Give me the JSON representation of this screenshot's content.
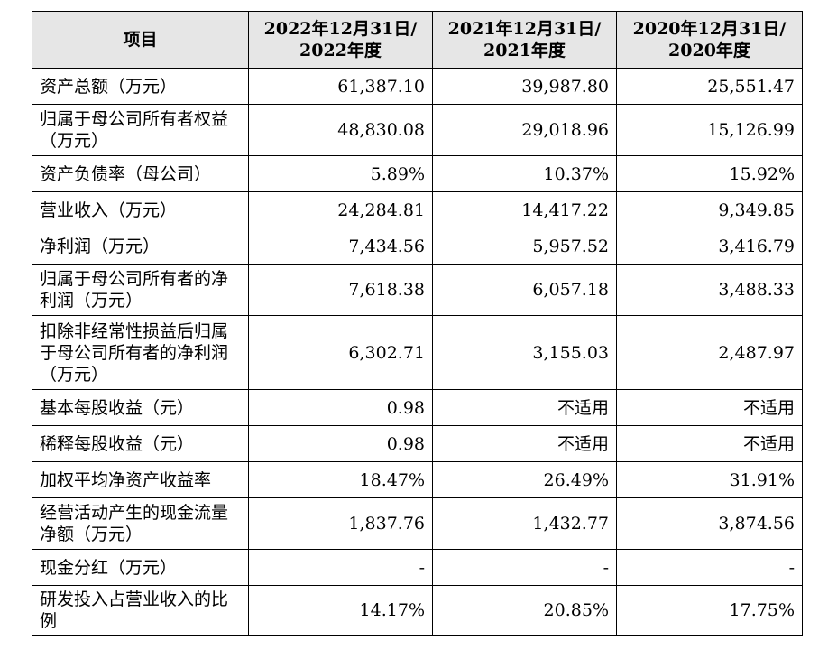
{
  "header": {
    "item": "项目",
    "col1": [
      "2022年12月31日/",
      "2022年度"
    ],
    "col2": [
      "2021年12月31日/",
      "2021年度"
    ],
    "col3": [
      "2020年12月31日/",
      "2020年度"
    ]
  },
  "rows": [
    {
      "label": "资产总额（万元）",
      "v": [
        "61,387.10",
        "39,987.80",
        "25,551.47"
      ]
    },
    {
      "label": "归属于母公司所有者权益（万元）",
      "v": [
        "48,830.08",
        "29,018.96",
        "15,126.99"
      ]
    },
    {
      "label": "资产负债率（母公司）",
      "v": [
        "5.89%",
        "10.37%",
        "15.92%"
      ]
    },
    {
      "label": "营业收入（万元）",
      "v": [
        "24,284.81",
        "14,417.22",
        "9,349.85"
      ]
    },
    {
      "label": "净利润（万元）",
      "v": [
        "7,434.56",
        "5,957.52",
        "3,416.79"
      ]
    },
    {
      "label": "归属于母公司所有者的净利润（万元）",
      "v": [
        "7,618.38",
        "6,057.18",
        "3,488.33"
      ]
    },
    {
      "label": "扣除非经常性损益后归属于母公司所有者的净利润（万元）",
      "v": [
        "6,302.71",
        "3,155.03",
        "2,487.97"
      ]
    },
    {
      "label": "基本每股收益（元）",
      "v": [
        "0.98",
        "不适用",
        "不适用"
      ]
    },
    {
      "label": "稀释每股收益（元）",
      "v": [
        "0.98",
        "不适用",
        "不适用"
      ]
    },
    {
      "label": "加权平均净资产收益率",
      "v": [
        "18.47%",
        "26.49%",
        "31.91%"
      ]
    },
    {
      "label": "经营活动产生的现金流量净额（万元）",
      "v": [
        "1,837.76",
        "1,432.77",
        "3,874.56"
      ]
    },
    {
      "label": "现金分红（万元）",
      "v": [
        "-",
        "-",
        "-"
      ]
    },
    {
      "label": "研发投入占营业收入的比例",
      "v": [
        "14.17%",
        "20.85%",
        "17.75%"
      ]
    }
  ]
}
